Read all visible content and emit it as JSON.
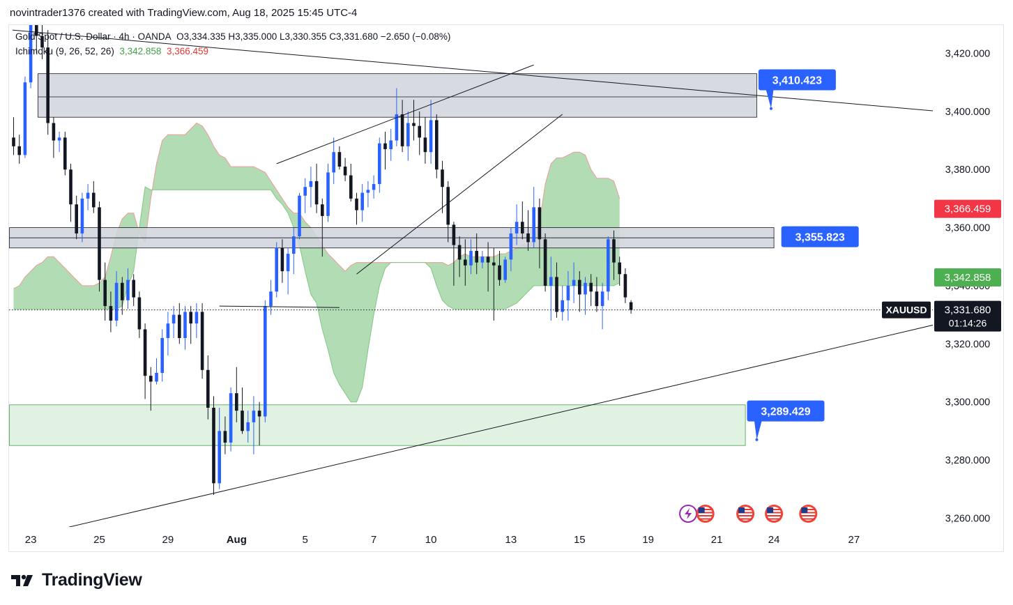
{
  "header": {
    "created_text": "novintrader1376 created with TradingView.com, Aug 18, 2025 15:45 UTC-4"
  },
  "legend": {
    "symbol_line": "Gold Spot / U.S. Dollar · 4h · OANDA",
    "ohlc": "O3,334.335  H3,335.000  L3,330.355  C3,331.680  −2.650 (−0.08%)",
    "indicator_name": "Ichimoku",
    "indicator_params": "(9, 26, 52, 26)",
    "indicator_value_green": "3,342.858",
    "indicator_value_red": "3,366.459"
  },
  "footer": {
    "brand": "TradingView"
  },
  "colors": {
    "up": "#2962ff",
    "down": "#131722",
    "cloud": "#a5d6a7",
    "cloud_edge": "#ef9a9a",
    "zone_grey": "#d1d4dc",
    "zone_green": "#dff1df",
    "callout": "#2962ff",
    "label_red": "#f23645",
    "label_green": "#4caf50",
    "label_dark": "#131722"
  },
  "chart_data": {
    "type": "candlestick",
    "symbol": "XAUUSD",
    "ylim": [
      3253,
      3432
    ],
    "y_ticks": [
      "3,420.000",
      "3,400.000",
      "3,380.000",
      "3,360.000",
      "3,340.000",
      "3,320.000",
      "3,300.000",
      "3,280.000",
      "3,260.000"
    ],
    "y_tick_values": [
      3420,
      3400,
      3380,
      3360,
      3340,
      3320,
      3300,
      3280,
      3260
    ],
    "x_ticks": [
      {
        "label": "23",
        "bar": 3
      },
      {
        "label": "25",
        "bar": 15
      },
      {
        "label": "29",
        "bar": 27
      },
      {
        "label": "Aug",
        "bar": 39
      },
      {
        "label": "5",
        "bar": 51
      },
      {
        "label": "7",
        "bar": 63
      },
      {
        "label": "10",
        "bar": 73
      },
      {
        "label": "13",
        "bar": 87
      },
      {
        "label": "15",
        "bar": 99
      },
      {
        "label": "19",
        "bar": 111
      },
      {
        "label": "21",
        "bar": 123
      },
      {
        "label": "24",
        "bar": 133
      },
      {
        "label": "27",
        "bar": 147
      }
    ],
    "candles": [
      [
        3391,
        3398,
        3385,
        3388
      ],
      [
        3388,
        3392,
        3382,
        3385
      ],
      [
        3385,
        3412,
        3384,
        3410
      ],
      [
        3410,
        3434,
        3408,
        3432
      ],
      [
        3432,
        3436,
        3420,
        3426
      ],
      [
        3426,
        3430,
        3418,
        3422
      ],
      [
        3422,
        3428,
        3392,
        3396
      ],
      [
        3396,
        3398,
        3384,
        3390
      ],
      [
        3390,
        3393,
        3386,
        3391
      ],
      [
        3391,
        3393,
        3378,
        3380
      ],
      [
        3380,
        3382,
        3362,
        3368
      ],
      [
        3368,
        3371,
        3356,
        3358
      ],
      [
        3358,
        3372,
        3355,
        3370
      ],
      [
        3370,
        3375,
        3366,
        3372
      ],
      [
        3372,
        3376,
        3365,
        3367
      ],
      [
        3367,
        3369,
        3338,
        3342
      ],
      [
        3342,
        3348,
        3328,
        3333
      ],
      [
        3333,
        3338,
        3324,
        3328
      ],
      [
        3328,
        3345,
        3326,
        3341
      ],
      [
        3341,
        3343,
        3330,
        3335
      ],
      [
        3335,
        3346,
        3332,
        3342
      ],
      [
        3342,
        3344,
        3333,
        3336
      ],
      [
        3336,
        3338,
        3322,
        3325
      ],
      [
        3325,
        3327,
        3301,
        3309
      ],
      [
        3309,
        3312,
        3297,
        3307
      ],
      [
        3307,
        3315,
        3306,
        3310
      ],
      [
        3310,
        3325,
        3307,
        3322
      ],
      [
        3322,
        3331,
        3316,
        3327
      ],
      [
        3327,
        3333,
        3322,
        3330
      ],
      [
        3330,
        3334,
        3320,
        3322
      ],
      [
        3322,
        3333,
        3318,
        3331
      ],
      [
        3331,
        3333,
        3320,
        3327
      ],
      [
        3327,
        3334,
        3322,
        3331
      ],
      [
        3331,
        3334,
        3308,
        3311
      ],
      [
        3311,
        3316,
        3294,
        3298
      ],
      [
        3298,
        3302,
        3268,
        3272
      ],
      [
        3272,
        3298,
        3270,
        3290
      ],
      [
        3290,
        3295,
        3282,
        3286
      ],
      [
        3286,
        3305,
        3283,
        3303
      ],
      [
        3303,
        3312,
        3293,
        3297
      ],
      [
        3297,
        3305,
        3289,
        3290
      ],
      [
        3290,
        3297,
        3286,
        3293
      ],
      [
        3293,
        3302,
        3282,
        3297
      ],
      [
        3297,
        3300,
        3285,
        3295
      ],
      [
        3295,
        3335,
        3293,
        3333
      ],
      [
        3333,
        3342,
        3330,
        3338
      ],
      [
        3338,
        3355,
        3336,
        3353
      ],
      [
        3353,
        3356,
        3341,
        3345
      ],
      [
        3345,
        3353,
        3337,
        3351
      ],
      [
        3351,
        3360,
        3344,
        3357
      ],
      [
        3357,
        3372,
        3356,
        3371
      ],
      [
        3371,
        3377,
        3365,
        3374
      ],
      [
        3374,
        3381,
        3367,
        3376
      ],
      [
        3376,
        3382,
        3365,
        3368
      ],
      [
        3368,
        3370,
        3350,
        3364
      ],
      [
        3364,
        3382,
        3362,
        3379
      ],
      [
        3379,
        3391,
        3375,
        3386
      ],
      [
        3386,
        3388,
        3380,
        3381
      ],
      [
        3381,
        3384,
        3376,
        3378
      ],
      [
        3378,
        3382,
        3369,
        3370
      ],
      [
        3370,
        3372,
        3361,
        3366
      ],
      [
        3366,
        3375,
        3362,
        3372
      ],
      [
        3372,
        3376,
        3367,
        3373
      ],
      [
        3373,
        3378,
        3370,
        3375
      ],
      [
        3375,
        3391,
        3372,
        3389
      ],
      [
        3389,
        3393,
        3380,
        3387
      ],
      [
        3387,
        3394,
        3383,
        3390
      ],
      [
        3390,
        3408,
        3388,
        3399
      ],
      [
        3399,
        3404,
        3386,
        3388
      ],
      [
        3388,
        3400,
        3383,
        3396
      ],
      [
        3396,
        3404,
        3390,
        3395
      ],
      [
        3395,
        3400,
        3385,
        3391
      ],
      [
        3391,
        3398,
        3382,
        3386
      ],
      [
        3386,
        3404,
        3382,
        3397
      ],
      [
        3397,
        3399,
        3377,
        3380
      ],
      [
        3380,
        3383,
        3365,
        3374
      ],
      [
        3374,
        3376,
        3355,
        3361
      ],
      [
        3361,
        3362,
        3340,
        3354
      ],
      [
        3354,
        3357,
        3343,
        3349
      ],
      [
        3349,
        3356,
        3340,
        3347
      ],
      [
        3347,
        3356,
        3344,
        3352
      ],
      [
        3352,
        3358,
        3344,
        3348
      ],
      [
        3348,
        3352,
        3346,
        3350
      ],
      [
        3350,
        3355,
        3338,
        3348
      ],
      [
        3348,
        3353,
        3328,
        3347
      ],
      [
        3347,
        3352,
        3340,
        3342
      ],
      [
        3342,
        3350,
        3341,
        3349
      ],
      [
        3349,
        3360,
        3345,
        3358
      ],
      [
        3358,
        3368,
        3354,
        3362
      ],
      [
        3362,
        3369,
        3356,
        3358
      ],
      [
        3358,
        3366,
        3352,
        3355
      ],
      [
        3355,
        3374,
        3353,
        3367
      ],
      [
        3367,
        3370,
        3346,
        3356
      ],
      [
        3356,
        3358,
        3338,
        3340
      ],
      [
        3340,
        3350,
        3328,
        3343
      ],
      [
        3343,
        3348,
        3329,
        3331
      ],
      [
        3331,
        3340,
        3328,
        3335
      ],
      [
        3335,
        3345,
        3328,
        3340
      ],
      [
        3340,
        3348,
        3334,
        3342
      ],
      [
        3342,
        3345,
        3331,
        3337
      ],
      [
        3337,
        3343,
        3330,
        3341
      ],
      [
        3341,
        3344,
        3333,
        3338
      ],
      [
        3338,
        3343,
        3331,
        3333
      ],
      [
        3333,
        3341,
        3325,
        3338
      ],
      [
        3338,
        3357,
        3335,
        3356
      ],
      [
        3356,
        3359,
        3342,
        3348
      ],
      [
        3348,
        3350,
        3340,
        3344
      ],
      [
        3344,
        3346,
        3334,
        3336
      ],
      [
        3334.335,
        3335,
        3330.355,
        3331.68
      ]
    ],
    "cloud": {
      "start_bar": 0,
      "senkou_a": [
        3339,
        3340,
        3343,
        3345,
        3347,
        3348,
        3350,
        3350,
        3348,
        3346,
        3344,
        3342,
        3340,
        3340,
        3340,
        3341,
        3343,
        3350,
        3358,
        3363,
        3365,
        3365,
        3358,
        3355,
        3370,
        3382,
        3390,
        3392,
        3392,
        3392,
        3392,
        3394,
        3396,
        3395,
        3392,
        3388,
        3385,
        3384,
        3381,
        3381,
        3381,
        3381,
        3381,
        3380,
        3379,
        3376,
        3373,
        3370,
        3367,
        3365,
        3365,
        3362,
        3360,
        3357,
        3354,
        3351,
        3349,
        3347,
        3345,
        3347,
        3348,
        3348,
        3348,
        3348,
        3348,
        3348,
        3348,
        3348,
        3348,
        3348,
        3348,
        3348,
        3348,
        3348,
        3348,
        3348,
        3347,
        3348,
        3350,
        3351,
        3350,
        3350,
        3350,
        3350,
        3350,
        3351,
        3351,
        3352,
        3353,
        3354,
        3354,
        3356,
        3362,
        3375,
        3382,
        3384,
        3384,
        3385,
        3386,
        3386,
        3385,
        3380,
        3377,
        3377,
        3377,
        3376,
        3370
      ],
      "senkou_b": [
        3332,
        3332,
        3332,
        3332,
        3332,
        3332,
        3332,
        3332,
        3332,
        3332,
        3332,
        3332,
        3332,
        3332,
        3332,
        3332,
        3332,
        3332,
        3332,
        3333,
        3340,
        3345,
        3360,
        3374,
        3373,
        3373,
        3373,
        3373,
        3373,
        3373,
        3373,
        3373,
        3373,
        3373,
        3373,
        3373,
        3373,
        3373,
        3373,
        3373,
        3373,
        3373,
        3373,
        3373,
        3373,
        3373,
        3370,
        3368,
        3365,
        3360,
        3354,
        3345,
        3337,
        3334,
        3325,
        3318,
        3310,
        3306,
        3303,
        3300,
        3300,
        3305,
        3318,
        3330,
        3340,
        3346,
        3348,
        3348,
        3348,
        3348,
        3348,
        3348,
        3348,
        3346,
        3340,
        3335,
        3333,
        3332,
        3332,
        3332,
        3332,
        3332,
        3332,
        3332,
        3332,
        3332,
        3332,
        3333,
        3334,
        3336,
        3338,
        3340,
        3340,
        3340,
        3340,
        3340,
        3340,
        3340,
        3340,
        3340,
        3340,
        3340,
        3340,
        3340,
        3340,
        3340,
        3341
      ]
    },
    "zones": [
      {
        "label": "upper-resistance",
        "from_bar": 5,
        "to_bar": 130,
        "low": 3398,
        "high": 3413,
        "mid": 3405,
        "color": "grey"
      },
      {
        "label": "mid-resistance",
        "from_bar": 0,
        "to_bar": 133,
        "low": 3353,
        "high": 3360,
        "mid": 3356.5,
        "color": "grey"
      },
      {
        "label": "demand",
        "from_bar": 0,
        "to_bar": 128,
        "low": 3285,
        "high": 3299,
        "color": "green"
      }
    ],
    "trendlines": [
      {
        "from": [
          -0.2,
          3428
        ],
        "to": [
          162,
          3400
        ]
      },
      {
        "from": [
          5.5,
          3255
        ],
        "to": [
          162,
          3327
        ]
      },
      {
        "from": [
          46,
          3382
        ],
        "to": [
          91,
          3416
        ]
      },
      {
        "from": [
          60,
          3344
        ],
        "to": [
          96,
          3399
        ]
      },
      {
        "from": [
          36,
          3333
        ],
        "to": [
          57,
          3332.5
        ]
      }
    ],
    "callouts": [
      {
        "text": "3,410.423",
        "label_bar": 132,
        "label_price": 3414,
        "arrow_bar": 132.5,
        "arrow_price": 3401
      },
      {
        "text": "3,355.823",
        "label_bar": 136,
        "label_price": 3360,
        "arrow_bar": 135.5,
        "arrow_price": 3355
      },
      {
        "text": "3,289.429",
        "label_bar": 130,
        "label_price": 3300,
        "arrow_bar": 130,
        "arrow_price": 3287
      }
    ],
    "price_labels": [
      {
        "text": "3,366.459",
        "price": 3366.459,
        "color": "red"
      },
      {
        "text": "3,342.858",
        "price": 3342.858,
        "color": "green"
      },
      {
        "text": "3,331.680",
        "sub": "01:14:26",
        "price": 3331.68,
        "color": "dark",
        "symbol": "XAUUSD"
      }
    ],
    "last_price": 3331.68,
    "event_icons": [
      {
        "bar": 118,
        "type": "lightning"
      },
      {
        "bar": 121,
        "type": "flag"
      },
      {
        "bar": 128,
        "type": "flag"
      },
      {
        "bar": 133,
        "type": "flag"
      },
      {
        "bar": 139,
        "type": "flag"
      }
    ]
  }
}
